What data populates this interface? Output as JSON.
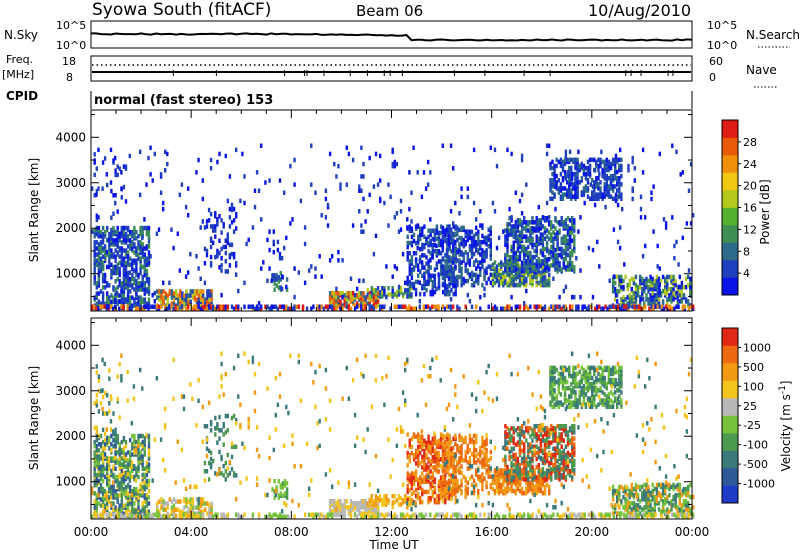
{
  "header": {
    "station": "Syowa South (fitACF)",
    "beam": "Beam 06",
    "date": "10/Aug/2010"
  },
  "top_panels": {
    "nsky_label": "N.Sky",
    "nsky_ticks": [
      "10^5",
      "10^0"
    ],
    "nsearch_label": "N.Search",
    "nsearch_ticks": [
      "10^5",
      "10^0"
    ],
    "freq_label": "Freq.",
    "freq_unit": "[MHz]",
    "freq_ticks": [
      "18",
      "8"
    ],
    "nave_label": "Nave",
    "nave_ticks": [
      "60",
      "0"
    ],
    "cpid_label": "CPID",
    "cpid_text": "normal (fast stereo) 153"
  },
  "chart_data": [
    {
      "type": "heatmap",
      "name": "power",
      "xlabel": "Time UT",
      "ylabel": "Slant Range [km]",
      "x_ticks": [
        "00:00",
        "04:00",
        "08:00",
        "12:00",
        "16:00",
        "20:00",
        "00:00"
      ],
      "x_range_hours": [
        0,
        24
      ],
      "y_ticks": [
        1000,
        2000,
        3000,
        4000
      ],
      "ylim": [
        180,
        4600
      ],
      "colorbar": {
        "label": "Power [dB]",
        "ticks": [
          "4",
          "8",
          "12",
          "16",
          "20",
          "24",
          "28"
        ],
        "colors": [
          "#0a14e6",
          "#1f3fbf",
          "#2e6a8a",
          "#3f8f55",
          "#55b02e",
          "#b5c81e",
          "#f0c814",
          "#f0900a",
          "#e85a0a",
          "#e01a14"
        ]
      },
      "regions": [
        {
          "t0": 0.1,
          "t1": 2.3,
          "r0": 200,
          "r1": 2000,
          "d": 0.45,
          "levels": [
            0,
            1,
            1,
            2,
            3
          ]
        },
        {
          "t0": 0.1,
          "t1": 1.4,
          "r0": 2000,
          "r1": 3600,
          "d": 0.06,
          "levels": [
            0,
            1
          ]
        },
        {
          "t0": 2.6,
          "t1": 4.8,
          "r0": 200,
          "r1": 600,
          "d": 0.5,
          "levels": [
            1,
            2,
            5,
            7,
            8
          ]
        },
        {
          "t0": 4.5,
          "t1": 5.8,
          "r0": 1000,
          "r1": 2400,
          "d": 0.1,
          "levels": [
            0,
            1
          ]
        },
        {
          "t0": 7.2,
          "t1": 7.8,
          "r0": 600,
          "r1": 1000,
          "d": 0.35,
          "levels": [
            1,
            2,
            3
          ]
        },
        {
          "t0": 9.5,
          "t1": 11.5,
          "r0": 250,
          "r1": 550,
          "d": 0.7,
          "levels": [
            2,
            5,
            7,
            8,
            9
          ]
        },
        {
          "t0": 11.0,
          "t1": 12.8,
          "r0": 450,
          "r1": 650,
          "d": 0.5,
          "levels": [
            1,
            3,
            5
          ]
        },
        {
          "t0": 12.6,
          "t1": 14.6,
          "r0": 500,
          "r1": 2000,
          "d": 0.35,
          "levels": [
            0,
            1,
            2
          ]
        },
        {
          "t0": 14.0,
          "t1": 16.0,
          "r0": 700,
          "r1": 2000,
          "d": 0.35,
          "levels": [
            0,
            1,
            2
          ]
        },
        {
          "t0": 16.0,
          "t1": 18.3,
          "r0": 700,
          "r1": 1200,
          "d": 0.6,
          "levels": [
            1,
            2,
            3,
            5
          ]
        },
        {
          "t0": 16.5,
          "t1": 19.3,
          "r0": 1000,
          "r1": 2200,
          "d": 0.45,
          "levels": [
            0,
            1,
            2,
            3
          ]
        },
        {
          "t0": 18.3,
          "t1": 21.2,
          "r0": 2600,
          "r1": 3500,
          "d": 0.45,
          "levels": [
            0,
            1,
            1,
            2
          ]
        },
        {
          "t0": 20.8,
          "t1": 23.9,
          "r0": 250,
          "r1": 900,
          "d": 0.45,
          "levels": [
            0,
            1,
            2,
            3,
            5
          ]
        },
        {
          "t0": 0.0,
          "t1": 24.0,
          "r0": 180,
          "r1": 260,
          "d": 0.55,
          "levels": [
            0,
            1,
            7,
            9
          ]
        },
        {
          "t0": 0.0,
          "t1": 24.0,
          "r0": 300,
          "r1": 3800,
          "d": 0.02,
          "levels": [
            0,
            1
          ]
        }
      ]
    },
    {
      "type": "heatmap",
      "name": "velocity",
      "xlabel": "Time UT",
      "ylabel": "Slant Range [km]",
      "x_ticks": [
        "00:00",
        "04:00",
        "08:00",
        "12:00",
        "16:00",
        "20:00",
        "00:00"
      ],
      "x_range_hours": [
        0,
        24
      ],
      "y_ticks": [
        1000,
        2000,
        3000,
        4000
      ],
      "ylim": [
        180,
        4600
      ],
      "colorbar": {
        "label": "Velocity [m s^-1]",
        "ticks": [
          "1000",
          "500",
          "100",
          "25",
          "-25",
          "-100",
          "-500",
          "-1000"
        ],
        "colors": [
          "#1e3cc8",
          "#2f5a9a",
          "#3a7a7a",
          "#4c9a50",
          "#77c23c",
          "#b8b8b8",
          "#f2c41c",
          "#f29a14",
          "#ee6a10",
          "#e02814"
        ]
      },
      "regions": [
        {
          "t0": 0.1,
          "t1": 2.3,
          "r0": 200,
          "r1": 2000,
          "d": 0.45,
          "levels": [
            1,
            2,
            3,
            4,
            6
          ]
        },
        {
          "t0": 0.1,
          "t1": 1.4,
          "r0": 2000,
          "r1": 3600,
          "d": 0.06,
          "levels": [
            2,
            6
          ]
        },
        {
          "t0": 2.6,
          "t1": 4.8,
          "r0": 200,
          "r1": 600,
          "d": 0.5,
          "levels": [
            4,
            5,
            6,
            7
          ]
        },
        {
          "t0": 4.5,
          "t1": 5.8,
          "r0": 1000,
          "r1": 2400,
          "d": 0.1,
          "levels": [
            2,
            3
          ]
        },
        {
          "t0": 7.2,
          "t1": 7.8,
          "r0": 600,
          "r1": 1000,
          "d": 0.35,
          "levels": [
            3,
            4
          ]
        },
        {
          "t0": 9.5,
          "t1": 11.5,
          "r0": 250,
          "r1": 550,
          "d": 0.7,
          "levels": [
            5,
            6,
            5
          ]
        },
        {
          "t0": 11.0,
          "t1": 12.8,
          "r0": 450,
          "r1": 650,
          "d": 0.5,
          "levels": [
            6,
            7
          ]
        },
        {
          "t0": 12.6,
          "t1": 14.6,
          "r0": 500,
          "r1": 2000,
          "d": 0.35,
          "levels": [
            7,
            8,
            9
          ]
        },
        {
          "t0": 14.0,
          "t1": 16.0,
          "r0": 700,
          "r1": 2000,
          "d": 0.35,
          "levels": [
            7,
            8
          ]
        },
        {
          "t0": 16.0,
          "t1": 18.3,
          "r0": 700,
          "r1": 1200,
          "d": 0.6,
          "levels": [
            7,
            8
          ]
        },
        {
          "t0": 16.5,
          "t1": 19.3,
          "r0": 1000,
          "r1": 2200,
          "d": 0.45,
          "levels": [
            2,
            3,
            8,
            9
          ]
        },
        {
          "t0": 18.3,
          "t1": 21.2,
          "r0": 2600,
          "r1": 3500,
          "d": 0.45,
          "levels": [
            2,
            3,
            4
          ]
        },
        {
          "t0": 20.8,
          "t1": 23.9,
          "r0": 250,
          "r1": 900,
          "d": 0.45,
          "levels": [
            2,
            3,
            4,
            7
          ]
        },
        {
          "t0": 0.0,
          "t1": 24.0,
          "r0": 180,
          "r1": 260,
          "d": 0.55,
          "levels": [
            4,
            5,
            6
          ]
        },
        {
          "t0": 0.0,
          "t1": 24.0,
          "r0": 300,
          "r1": 3800,
          "d": 0.02,
          "levels": [
            2,
            6,
            7
          ]
        }
      ]
    }
  ]
}
